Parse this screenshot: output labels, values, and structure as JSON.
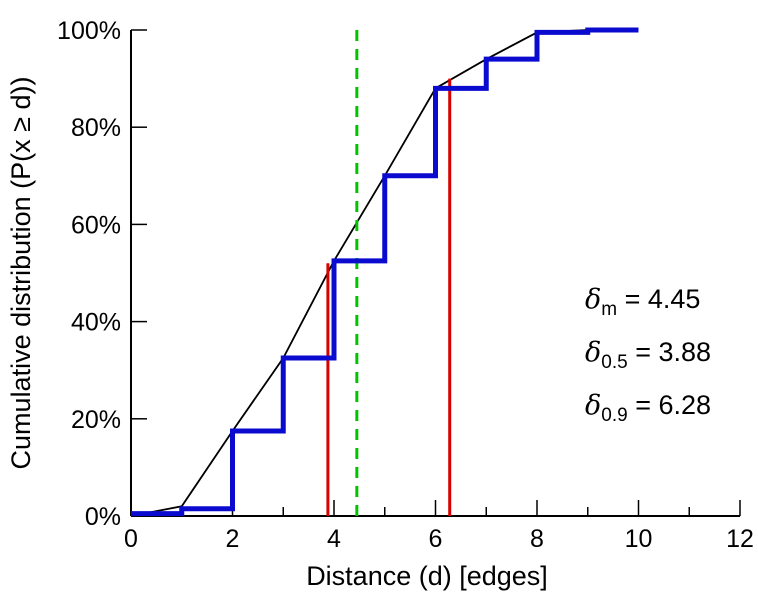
{
  "chart_data": {
    "type": "line",
    "title": "",
    "xlabel": "Distance (d) [edges]",
    "ylabel": "Cumulative distribution (P(x ≥ d))",
    "xlim": [
      0,
      12
    ],
    "ylim": [
      0,
      100
    ],
    "x_major_ticks": [
      0,
      2,
      4,
      6,
      8,
      10,
      12
    ],
    "x_minor_ticks": [
      1,
      3,
      5,
      7,
      9,
      11
    ],
    "y_ticks": [
      0,
      20,
      40,
      60,
      80,
      100
    ],
    "y_tick_labels": [
      "0%",
      "20%",
      "40%",
      "60%",
      "80%",
      "100%"
    ],
    "grid": false,
    "legend": "none",
    "series": [
      {
        "name": "fitted-curve",
        "style": "line",
        "color": "#000000",
        "width": 1.8,
        "x": [
          0,
          1,
          2,
          3,
          4,
          5,
          6,
          7,
          8,
          9,
          10
        ],
        "values": [
          0,
          2,
          17.5,
          32.5,
          52.5,
          70,
          88,
          94,
          99.5,
          100,
          100
        ]
      },
      {
        "name": "empirical-cdf-step",
        "style": "step",
        "color": "#0b0bd0",
        "width": 5,
        "x": [
          0,
          1,
          2,
          3,
          4,
          5,
          6,
          7,
          8,
          9,
          10
        ],
        "values": [
          0.5,
          1.5,
          17.5,
          32.5,
          52.5,
          70,
          88,
          94,
          99.5,
          100,
          100
        ]
      }
    ],
    "vlines": [
      {
        "name": "mean-marker",
        "x": 4.45,
        "y_from": 0,
        "y_to": 100,
        "color": "#00c400",
        "style": "dashed",
        "width": 3
      },
      {
        "name": "median-marker",
        "x": 3.88,
        "y_from": 0,
        "y_to": 52,
        "color": "#d80000",
        "style": "solid",
        "width": 3
      },
      {
        "name": "p90-marker",
        "x": 6.28,
        "y_from": 0,
        "y_to": 90,
        "color": "#d80000",
        "style": "solid",
        "width": 3
      }
    ],
    "annotations": [
      {
        "symbol": "δ",
        "subscript": "m",
        "text": " = 4.45"
      },
      {
        "symbol": "δ",
        "subscript": "0.5",
        "text": " = 3.88"
      },
      {
        "symbol": "δ",
        "subscript": "0.9",
        "text": " = 6.28"
      }
    ]
  }
}
